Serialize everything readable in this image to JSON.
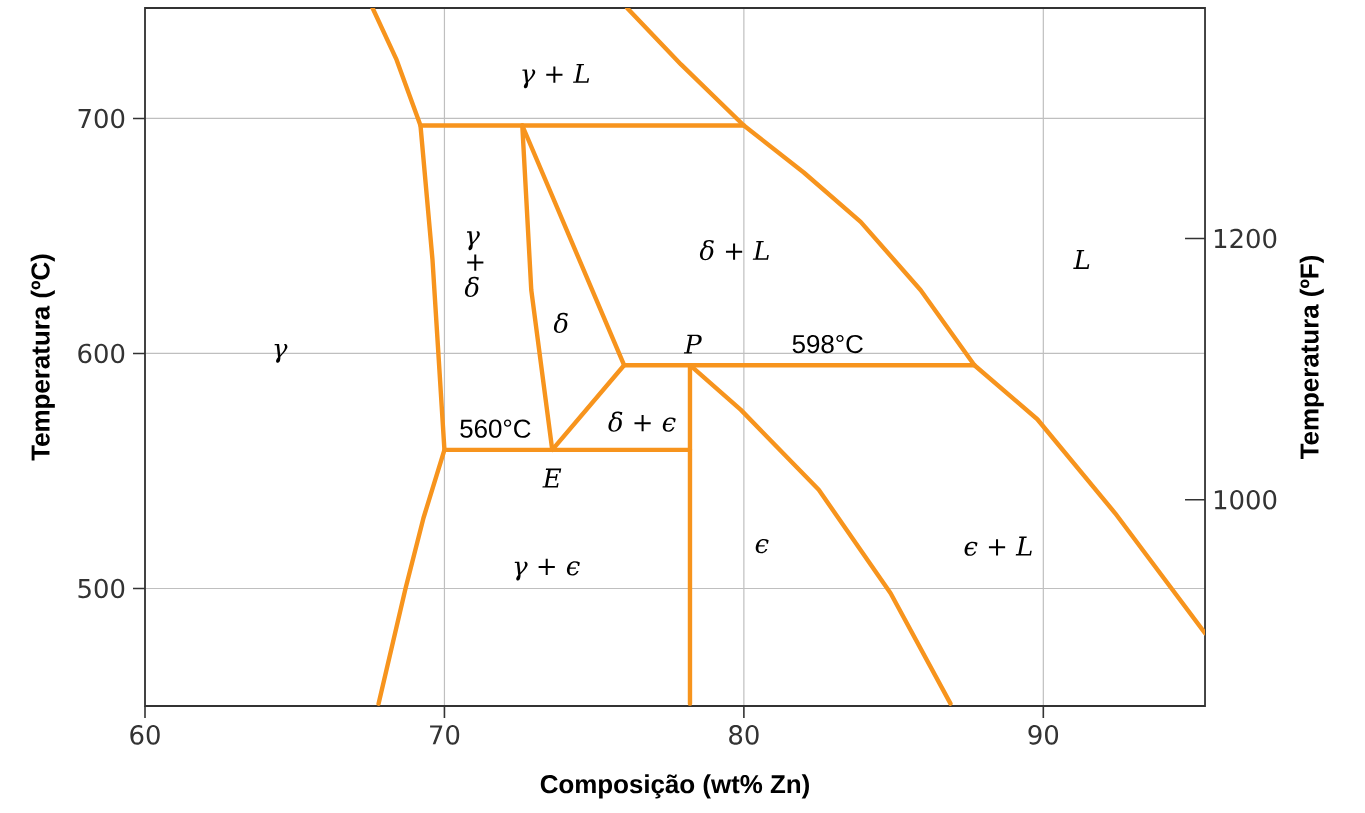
{
  "chart_data": {
    "type": "line",
    "xlabel": "Composição (wt% Zn)",
    "ylabel": "Temperatura (ºC)",
    "y2label": "Temperatura (ºF)",
    "xlim": [
      60,
      95.4
    ],
    "ylim": [
      450,
      747
    ],
    "y2lim": [
      842,
      1376.6
    ],
    "xticks": [
      60,
      70,
      80,
      90
    ],
    "yticks": [
      500,
      600,
      700
    ],
    "y2ticks": [
      1000,
      1200
    ],
    "grid": true,
    "marker": "none",
    "line_style": "solid",
    "series": [
      {
        "color": "#f7941d",
        "x": [
          67.6,
          68.4,
          69.2,
          69.6,
          70.0,
          69.3,
          68.7,
          67.8
        ],
        "values": [
          747,
          725,
          697,
          640,
          559,
          530,
          500,
          451
        ]
      },
      {
        "color": "#f7941d",
        "x": [
          69.2,
          80.0
        ],
        "values": [
          697,
          697
        ]
      },
      {
        "color": "#f7941d",
        "x": [
          72.6,
          72.9,
          73.6
        ],
        "values": [
          697,
          627,
          559
        ]
      },
      {
        "color": "#f7941d",
        "x": [
          72.6,
          76.0
        ],
        "values": [
          697,
          595
        ]
      },
      {
        "color": "#f7941d",
        "x": [
          76.0,
          73.6
        ],
        "values": [
          595,
          559
        ]
      },
      {
        "color": "#f7941d",
        "x": [
          70.0,
          78.2
        ],
        "values": [
          559,
          559
        ]
      },
      {
        "color": "#f7941d",
        "x": [
          76.0,
          87.7
        ],
        "values": [
          595,
          595
        ]
      },
      {
        "color": "#f7941d",
        "x": [
          78.2,
          78.2
        ],
        "values": [
          595,
          451
        ]
      },
      {
        "color": "#f7941d",
        "x": [
          78.2,
          79.9,
          82.5,
          84.9,
          86.9
        ],
        "values": [
          595,
          576,
          542,
          498,
          451
        ]
      },
      {
        "color": "#f7941d",
        "x": [
          76.1,
          77.9,
          80.0,
          82.0,
          83.9,
          85.9,
          87.7,
          89.8,
          92.4,
          95.4
        ],
        "values": [
          747,
          723,
          697,
          677,
          656,
          627,
          595,
          572,
          532,
          481
        ]
      }
    ],
    "annotations": [
      "γ + L",
      "γ + δ",
      "δ",
      "δ + L",
      "L",
      "γ",
      "P",
      "598°C",
      "560°C",
      "δ + ϵ",
      "E",
      "ϵ",
      "ϵ + L",
      "γ + ϵ"
    ]
  }
}
